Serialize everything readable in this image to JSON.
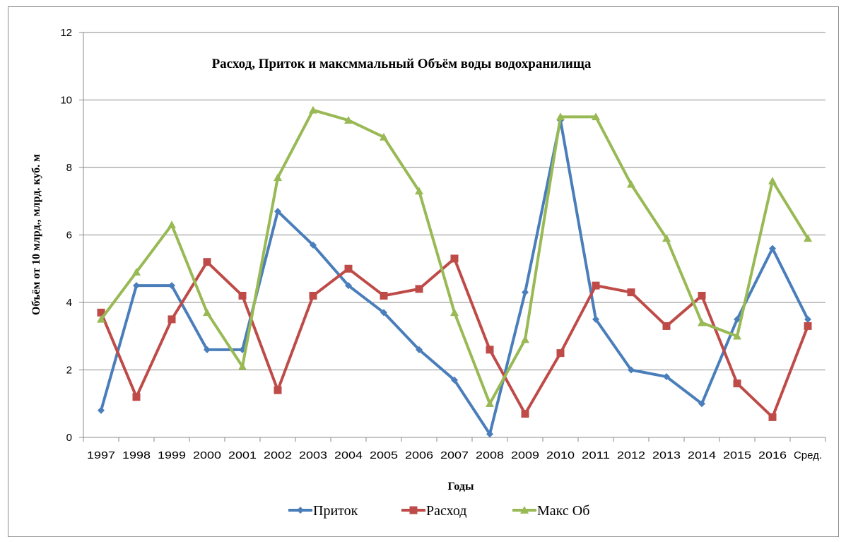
{
  "chart_data": {
    "type": "line",
    "title": "Расход, Приток и максммальный Объём воды водохранилища",
    "xlabel": "Годы",
    "ylabel": "Объём от  10 млрд., млрд. куб. м",
    "ylim": [
      0,
      12
    ],
    "yticks": [
      "0",
      "2",
      "4",
      "6",
      "8",
      "10",
      "12"
    ],
    "grid": true,
    "legend_position": "bottom",
    "categories": [
      "1997",
      "1998",
      "1999",
      "2000",
      "2001",
      "2002",
      "2003",
      "2004",
      "2005",
      "2006",
      "2007",
      "2008",
      "2009",
      "2010",
      "2011",
      "2012",
      "2013",
      "2014",
      "2015",
      "2016",
      "Сред."
    ],
    "series": [
      {
        "name": "Приток",
        "color": "#4a7ebb",
        "marker": "diamond",
        "values": [
          0.8,
          4.5,
          4.5,
          2.6,
          2.6,
          6.7,
          5.7,
          4.5,
          3.7,
          2.6,
          1.7,
          0.1,
          4.3,
          9.4,
          3.5,
          2.0,
          1.8,
          1.0,
          3.5,
          5.6,
          3.5
        ]
      },
      {
        "name": "Расход",
        "color": "#be4b48",
        "marker": "square",
        "values": [
          3.7,
          1.2,
          3.5,
          5.2,
          4.2,
          1.4,
          4.2,
          5.0,
          4.2,
          4.4,
          5.3,
          2.6,
          0.7,
          2.5,
          4.5,
          4.3,
          3.3,
          4.2,
          1.6,
          0.6,
          3.3
        ]
      },
      {
        "name": "Макс Об",
        "color": "#98b954",
        "marker": "triangle",
        "values": [
          3.5,
          4.9,
          6.3,
          3.7,
          2.1,
          7.7,
          9.7,
          9.4,
          8.9,
          7.3,
          3.7,
          1.0,
          2.9,
          9.5,
          9.5,
          7.5,
          5.9,
          3.4,
          3.0,
          7.6,
          5.9
        ]
      }
    ]
  }
}
